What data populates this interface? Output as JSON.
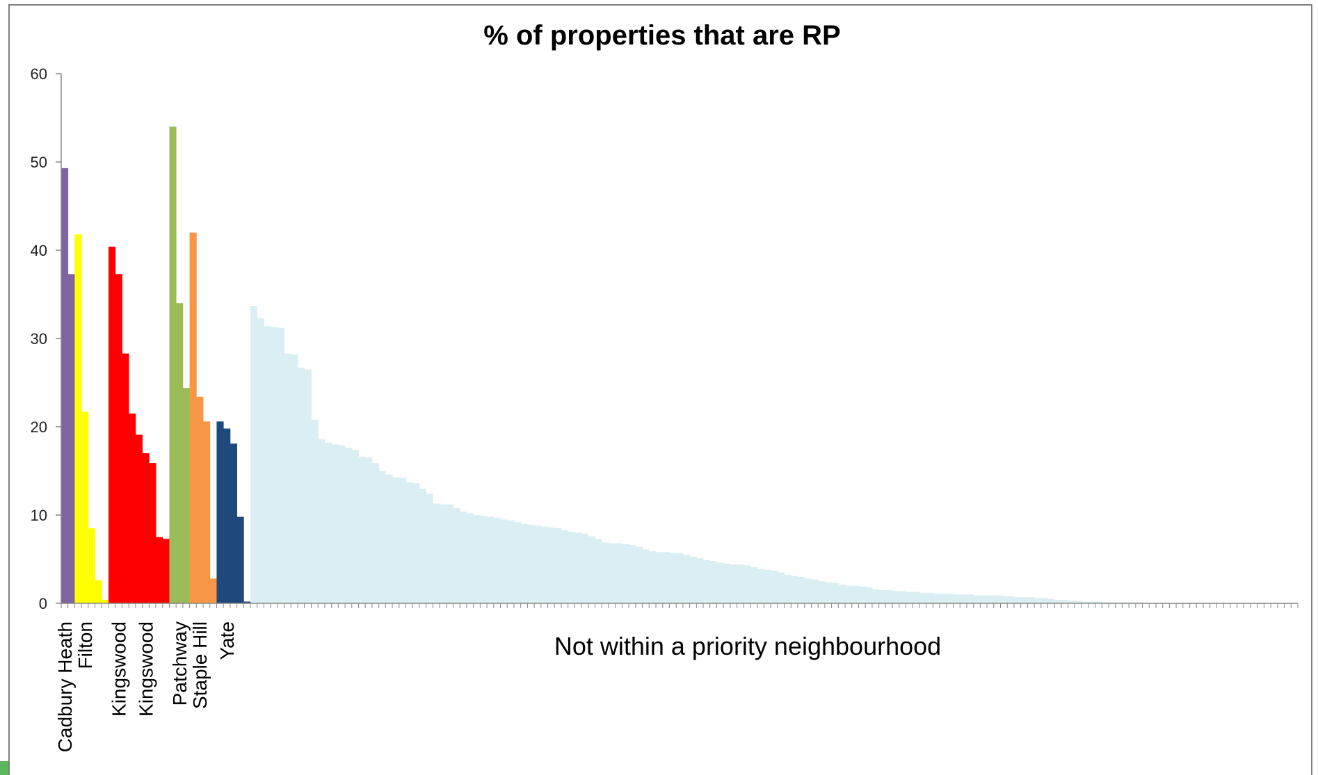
{
  "chart_data": {
    "type": "bar",
    "title": "% of properties that are RP",
    "xlabel": "",
    "ylabel": "",
    "ylim": [
      0,
      60
    ],
    "yticks": [
      0,
      10,
      20,
      30,
      40,
      50,
      60
    ],
    "grid": false,
    "legend": "none",
    "series": [
      {
        "group": "Cadbury Heath",
        "color": "#8064a2",
        "values": [
          49.3,
          37.3
        ]
      },
      {
        "group": "Filton",
        "color": "#ffff00",
        "values": [
          41.8,
          21.7,
          8.5,
          2.6,
          0.4
        ]
      },
      {
        "group": "Kingswood",
        "color": "#ff0000",
        "values": [
          40.4,
          37.3,
          28.3,
          21.5,
          19.1,
          17.0,
          15.9,
          7.5,
          7.3
        ]
      },
      {
        "group": "Patchway",
        "color": "#9bbb59",
        "values": [
          54.0,
          34.0,
          24.4
        ]
      },
      {
        "group": "Staple Hill",
        "color": "#f79646",
        "values": [
          42.0,
          23.4,
          20.6,
          2.8
        ]
      },
      {
        "group": "Yate",
        "color": "#1f497d",
        "values": [
          20.6,
          19.8,
          18.1,
          9.8,
          0.2
        ]
      },
      {
        "group": "Not within a priority neighbourhood",
        "color": "#daeef3",
        "values": [
          33.7,
          32.3,
          31.4,
          31.3,
          31.2,
          28.3,
          28.2,
          26.7,
          26.5,
          20.8,
          18.6,
          18.2,
          18.0,
          17.9,
          17.6,
          17.4,
          16.6,
          16.5,
          15.9,
          15.0,
          14.6,
          14.3,
          14.2,
          13.7,
          13.6,
          13.0,
          12.4,
          11.3,
          11.2,
          11.2,
          10.8,
          10.4,
          10.2,
          10.0,
          9.9,
          9.8,
          9.7,
          9.5,
          9.4,
          9.2,
          9.0,
          8.9,
          8.8,
          8.7,
          8.6,
          8.5,
          8.3,
          8.1,
          8.0,
          7.9,
          7.6,
          7.3,
          6.9,
          6.8,
          6.8,
          6.7,
          6.6,
          6.4,
          6.1,
          5.9,
          5.8,
          5.8,
          5.7,
          5.7,
          5.5,
          5.3,
          5.1,
          4.9,
          4.8,
          4.6,
          4.5,
          4.4,
          4.4,
          4.3,
          4.1,
          3.9,
          3.8,
          3.7,
          3.5,
          3.2,
          3.1,
          3.0,
          2.8,
          2.7,
          2.5,
          2.4,
          2.3,
          2.1,
          2.0,
          2.0,
          1.9,
          1.8,
          1.6,
          1.5,
          1.5,
          1.4,
          1.4,
          1.3,
          1.3,
          1.2,
          1.2,
          1.1,
          1.1,
          1.1,
          1.0,
          1.0,
          1.0,
          0.9,
          0.9,
          0.9,
          0.9,
          0.8,
          0.8,
          0.7,
          0.7,
          0.7,
          0.6,
          0.6,
          0.5,
          0.4,
          0.4,
          0.3,
          0.3,
          0.2,
          0.2,
          0.2,
          0.1,
          0.1,
          0.1,
          0.1,
          0.1,
          0.1,
          0.0,
          0.0,
          0.0,
          0.0,
          0.0,
          0.0,
          0.0,
          0.0,
          0.0,
          0.0,
          0.0,
          0.0,
          0.0,
          0.0,
          0.0,
          0.0,
          0.0,
          0.0,
          0.0,
          0.0,
          0.0,
          0.0,
          0.0
        ]
      }
    ],
    "category_labels": [
      {
        "text": "Cadbury Heath",
        "group": 0,
        "index": 0
      },
      {
        "text": "Filton",
        "group": 1,
        "index": 1
      },
      {
        "text": "Kingswood",
        "group": 2,
        "index": 1
      },
      {
        "text": "Kingswood",
        "group": 2,
        "index": 5
      },
      {
        "text": "Patchway",
        "group": 3,
        "index": 1
      },
      {
        "text": "Staple Hill",
        "group": 4,
        "index": 1
      },
      {
        "text": "Yate",
        "group": 5,
        "index": 1
      }
    ],
    "band_label": "Not within a priority neighbourhood"
  }
}
